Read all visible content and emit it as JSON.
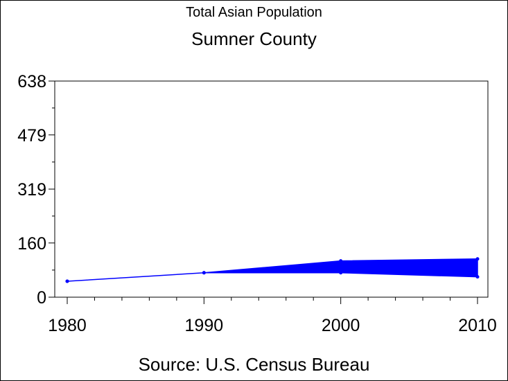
{
  "chart_data": {
    "type": "area",
    "title": "Total Asian Population",
    "subtitle": "Sumner County",
    "footnote": "Source: U.S. Census Bureau",
    "xlabel": "",
    "ylabel": "",
    "x": [
      1980,
      1990,
      2000,
      2010
    ],
    "x_ticks": [
      "1980",
      "1990",
      "2000",
      "2010"
    ],
    "y_ticks": [
      "0",
      "160",
      "319",
      "479",
      "638"
    ],
    "xlim": [
      1980,
      2010
    ],
    "ylim": [
      0,
      638
    ],
    "series": [
      {
        "values": [
          47,
          72,
          107,
          113
        ]
      },
      {
        "values": [
          47,
          72,
          72,
          60
        ]
      }
    ],
    "colors": {
      "series": "#0000ff",
      "axis": "#000000"
    },
    "grid": false,
    "legend": "none"
  }
}
